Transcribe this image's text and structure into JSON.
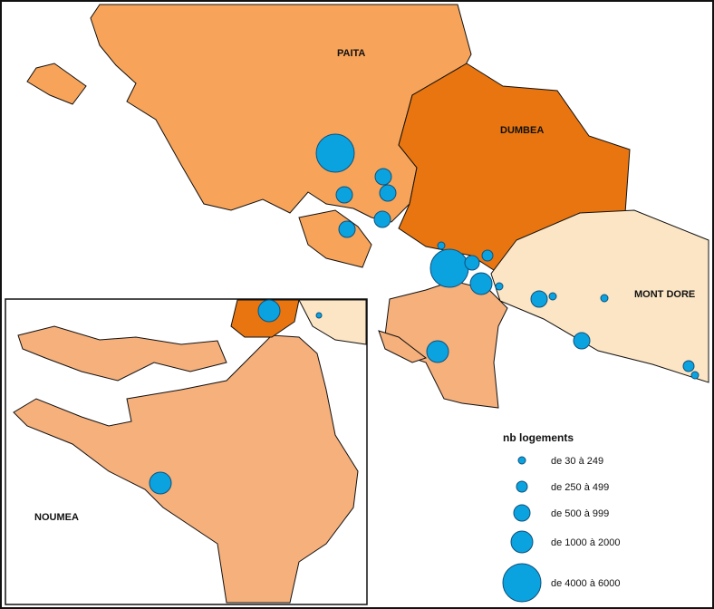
{
  "map": {
    "regions": [
      {
        "label": "PAITA"
      },
      {
        "label": "DUMBEA"
      },
      {
        "label": "MONT DORE"
      },
      {
        "label": "NOUMEA"
      }
    ],
    "legend": {
      "title": "nb logements",
      "entries": [
        "de 30 à 249",
        "de 250 à 499",
        "de 500 à 999",
        "de 1000 à 2000",
        "de 4000 à 6000"
      ]
    }
  }
}
